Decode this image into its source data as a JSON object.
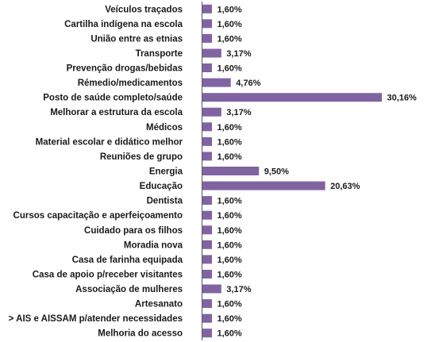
{
  "chart_data": {
    "type": "bar",
    "orientation": "horizontal",
    "title": "",
    "xlabel": "",
    "ylabel": "",
    "xlim": [
      0,
      0.33
    ],
    "grid": false,
    "legend": "none",
    "bar_color": "#8064a2",
    "categories": [
      "Veículos traçados",
      "Cartilha indígena na escola",
      "União entre as etnias",
      "Transporte",
      "Prevenção drogas/bebidas",
      "Rémedio/medicamentos",
      "Posto de saúde completo/saúde",
      "Melhorar a estrutura da escola",
      "Médicos",
      "Material escolar e didático melhor",
      "Reuniões de grupo",
      "Energia",
      "Educação",
      "Dentista",
      "Cursos capacitação e aperfeiçoamento",
      "Cuidado para os filhos",
      "Moradia nova",
      "Casa de farinha equipada",
      "Casa de apoio p/receber visitantes",
      "Associação de mulheres",
      "Artesanato",
      "> AIS e AISSAM p/atender necessidades",
      "Melhoria do acesso"
    ],
    "values": [
      0.016,
      0.016,
      0.016,
      0.0317,
      0.016,
      0.0476,
      0.3016,
      0.0317,
      0.016,
      0.016,
      0.016,
      0.095,
      0.2063,
      0.016,
      0.016,
      0.016,
      0.016,
      0.016,
      0.016,
      0.0317,
      0.016,
      0.016,
      0.016
    ],
    "value_labels": [
      "1,60%",
      "1,60%",
      "1,60%",
      "3,17%",
      "1,60%",
      "4,76%",
      "30,16%",
      "3,17%",
      "1,60%",
      "1,60%",
      "1,60%",
      "9,50%",
      "20,63%",
      "1,60%",
      "1,60%",
      "1,60%",
      "1,60%",
      "1,60%",
      "1,60%",
      "3,17%",
      "1,60%",
      "1,60%",
      "1,60%"
    ]
  }
}
